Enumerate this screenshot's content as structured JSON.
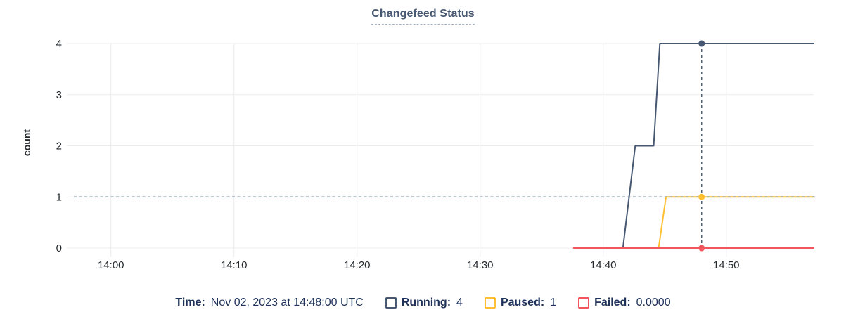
{
  "title": "Changefeed Status",
  "chart_data": {
    "type": "line",
    "title": "Changefeed Status",
    "xlabel": "",
    "ylabel": "count",
    "x_unit": "time of day UTC, encoded as minutes after 14:00",
    "x_range_minutes": [
      -3.3,
      57.1
    ],
    "ylim": [
      0,
      4
    ],
    "y_ticks": [
      0,
      1,
      2,
      3,
      4
    ],
    "x_ticks": [
      {
        "m": 0,
        "label": "14:00"
      },
      {
        "m": 10,
        "label": "14:10"
      },
      {
        "m": 20,
        "label": "14:20"
      },
      {
        "m": 30,
        "label": "14:30"
      },
      {
        "m": 40,
        "label": "14:40"
      },
      {
        "m": 50,
        "label": "14:50"
      }
    ],
    "grid": true,
    "grid_color": "#ececee",
    "axis_text_color": "#242a2e",
    "series": [
      {
        "name": "Running",
        "color": "#475872",
        "points_min_value": [
          [
            37.6,
            0
          ],
          [
            41.6,
            0
          ],
          [
            42.6,
            2
          ],
          [
            44.1,
            2
          ],
          [
            44.6,
            4
          ],
          [
            57.1,
            4
          ]
        ]
      },
      {
        "name": "Paused",
        "color": "#ffbf33",
        "points_min_value": [
          [
            37.6,
            0
          ],
          [
            44.5,
            0
          ],
          [
            45.1,
            1
          ],
          [
            57.1,
            1
          ]
        ]
      },
      {
        "name": "Failed",
        "color": "#f2555c",
        "points_min_value": [
          [
            37.6,
            0
          ],
          [
            57.1,
            0
          ]
        ]
      }
    ],
    "crosshair": {
      "minutes": 48,
      "time": "14:48:00 UTC",
      "vline_color": "#475872",
      "hline_value": 1,
      "hline_color": "#7d929b",
      "points": [
        {
          "series": "Running",
          "value": 4
        },
        {
          "series": "Paused",
          "value": 1
        },
        {
          "series": "Failed",
          "value": 0
        }
      ]
    }
  },
  "legend": {
    "time_label": "Time:",
    "time_value": "Nov 02, 2023 at 14:48:00 UTC",
    "items": [
      {
        "label": "Running:",
        "value": "4",
        "color": "#475872"
      },
      {
        "label": "Paused:",
        "value": "1",
        "color": "#ffbf33"
      },
      {
        "label": "Failed:",
        "value": "0.0000",
        "color": "#f2555c"
      }
    ]
  }
}
